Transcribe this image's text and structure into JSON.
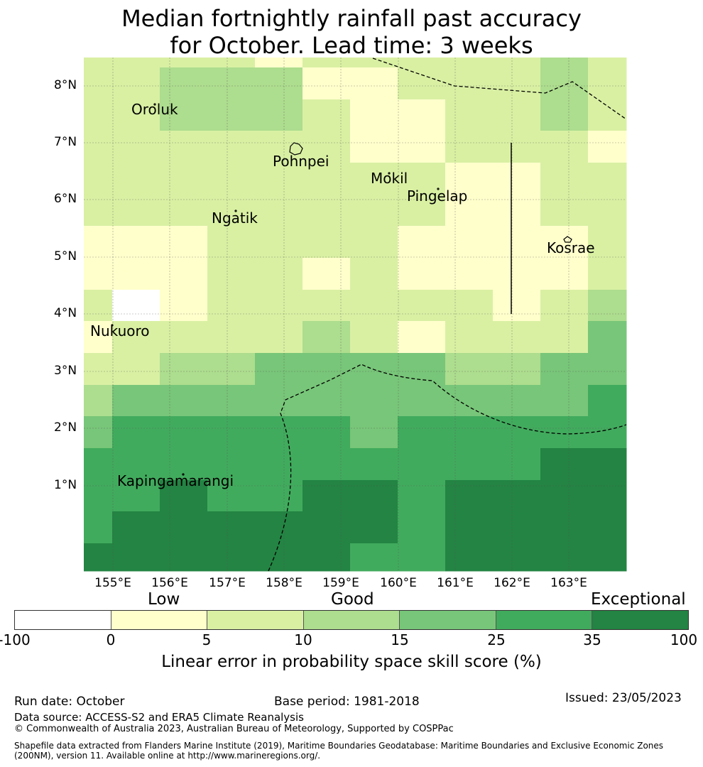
{
  "title": {
    "line1": "Median fortnightly rainfall past accuracy",
    "line2": "for October. Lead time: 3 weeks"
  },
  "map": {
    "lat_labels": [
      "8°N",
      "7°N",
      "6°N",
      "5°N",
      "4°N",
      "3°N",
      "2°N",
      "1°N"
    ],
    "lon_labels": [
      "155°E",
      "156°E",
      "157°E",
      "158°E",
      "159°E",
      "160°E",
      "161°E",
      "162°E",
      "163°E"
    ],
    "places": [
      "Oroluk",
      "Pohnpei",
      "Mokil",
      "Pingelap",
      "Ngatik",
      "Kosrae",
      "Nukuoro",
      "Kapingamarangi"
    ]
  },
  "legend": {
    "categories": [
      "Low",
      "Good",
      "Exceptional"
    ],
    "colors": [
      "#ffffff",
      "#ffffcc",
      "#d9f0a3",
      "#addd8e",
      "#78c679",
      "#41ab5d",
      "#238443"
    ],
    "ticks": [
      "-100",
      "0",
      "5",
      "10",
      "15",
      "25",
      "35",
      "100"
    ],
    "title": "Linear error in probability space skill score (%)"
  },
  "footer": {
    "run_date": "Run date: October",
    "base_period": "Base period: 1981-2018",
    "issued": "Issued: 23/05/2023",
    "data_source": "Data source: ACCESS-S2 and ERA5 Climate Reanalysis",
    "copyright": "© Commonwealth of Australia 2023, Australian Bureau of Meteorology, Supported by COSPPac",
    "shapefile_1": "Shapefile data extracted from Flanders Marine Institute (2019), Maritime Boundaries Geodatabase: Maritime Boundaries and Exclusive Economic Zones",
    "shapefile_2": "(200NM), version 11. Available online at http://www.marineregions.org/."
  }
}
